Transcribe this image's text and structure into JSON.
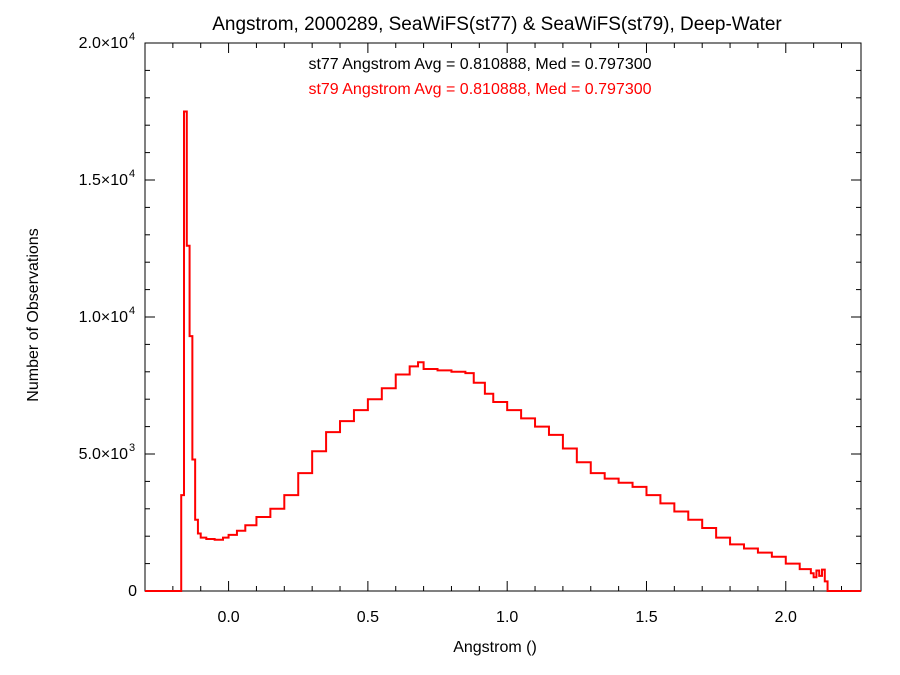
{
  "chart_data": {
    "type": "histogram",
    "title": "Angstrom, 2000289, SeaWiFS(st77) & SeaWiFS(st79), Deep-Water",
    "xlabel": "Angstrom ()",
    "ylabel": "Number of Observations",
    "xlim": [
      -0.3,
      2.27
    ],
    "ylim": [
      0,
      20000
    ],
    "x_ticks": [
      {
        "value": 0.0,
        "label": "0.0"
      },
      {
        "value": 0.5,
        "label": "0.5"
      },
      {
        "value": 1.0,
        "label": "1.0"
      },
      {
        "value": 1.5,
        "label": "1.5"
      },
      {
        "value": 2.0,
        "label": "2.0"
      }
    ],
    "y_ticks": [
      {
        "value": 0,
        "mantissa": "0",
        "exponent": ""
      },
      {
        "value": 5000,
        "mantissa": "5.0×10",
        "exponent": "3"
      },
      {
        "value": 10000,
        "mantissa": "1.0×10",
        "exponent": "4"
      },
      {
        "value": 15000,
        "mantissa": "1.5×10",
        "exponent": "4"
      },
      {
        "value": 20000,
        "mantissa": "2.0×10",
        "exponent": "4"
      }
    ],
    "annotations": [
      {
        "text": "st77 Angstrom Avg = 0.810888, Med = 0.797300",
        "color": "#000000"
      },
      {
        "text": "st79 Angstrom Avg = 0.810888, Med = 0.797300",
        "color": "#ff0000"
      }
    ],
    "series": [
      {
        "color": "#ff0000",
        "bin_edges_x": [
          -0.3,
          -0.17,
          -0.16,
          -0.15,
          -0.14,
          -0.13,
          -0.12,
          -0.11,
          -0.1,
          -0.08,
          -0.05,
          -0.02,
          0.0,
          0.03,
          0.06,
          0.1,
          0.15,
          0.2,
          0.25,
          0.3,
          0.35,
          0.4,
          0.45,
          0.5,
          0.55,
          0.6,
          0.65,
          0.68,
          0.7,
          0.75,
          0.8,
          0.85,
          0.88,
          0.92,
          0.95,
          1.0,
          1.05,
          1.1,
          1.15,
          1.2,
          1.25,
          1.3,
          1.35,
          1.4,
          1.45,
          1.5,
          1.55,
          1.6,
          1.65,
          1.7,
          1.75,
          1.8,
          1.85,
          1.9,
          1.95,
          2.0,
          2.05,
          2.09,
          2.1,
          2.11,
          2.12,
          2.13,
          2.14,
          2.15,
          2.27
        ],
        "counts": [
          0,
          3500,
          17500,
          12600,
          9300,
          4800,
          2600,
          2100,
          1950,
          1900,
          1870,
          1950,
          2050,
          2200,
          2400,
          2700,
          3000,
          3500,
          4300,
          5100,
          5800,
          6200,
          6600,
          7000,
          7400,
          7900,
          8200,
          8350,
          8100,
          8050,
          8000,
          7950,
          7600,
          7200,
          6900,
          6600,
          6300,
          6000,
          5700,
          5200,
          4700,
          4300,
          4100,
          3950,
          3800,
          3500,
          3200,
          2900,
          2600,
          2300,
          1950,
          1700,
          1550,
          1400,
          1250,
          1000,
          800,
          650,
          500,
          750,
          550,
          780,
          350,
          0
        ]
      }
    ]
  }
}
